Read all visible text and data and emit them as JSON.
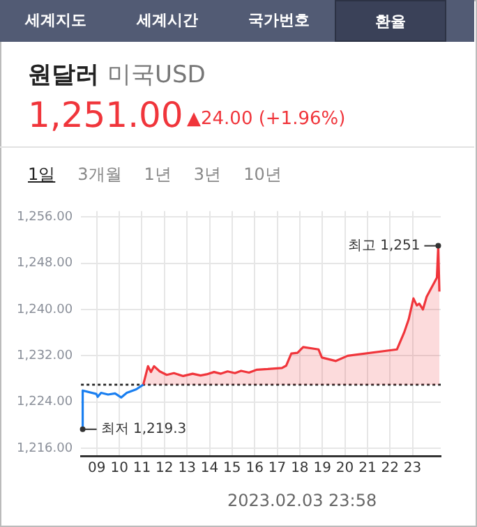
{
  "chart_data": {
    "type": "area",
    "title": "원달러",
    "subtitle": "미국USD",
    "annotations": [
      "세계지도",
      "세계시간",
      "국가번호",
      "환율",
      "1,251.00",
      "▲24.00 (+1.96%)",
      "1일",
      "3개월",
      "1년",
      "3년",
      "10년",
      "2023.02.03 23:58",
      {
        "text": "최고 1,251",
        "x": 24.14,
        "y": 1251
      },
      {
        "text": "최저 1,219.3",
        "x": 8.375,
        "y": 1219.3
      }
    ],
    "series": [
      {
        "type": "line",
        "color": "#1a7ff0",
        "x": [
          8.375,
          8.375,
          8.98,
          9.04,
          9.19,
          9.5,
          9.81,
          10.08,
          10.33,
          10.75,
          11.06
        ],
        "values": [
          1219.3,
          1226.0,
          1225.4,
          1224.9,
          1225.6,
          1225.3,
          1225.5,
          1224.8,
          1225.6,
          1226.2,
          1227.0
        ]
      },
      {
        "color": "#f0353b",
        "x": [
          11.06,
          11.27,
          11.4,
          11.54,
          11.79,
          12.1,
          12.42,
          12.83,
          13.25,
          13.6,
          13.875,
          14.2,
          14.5,
          14.8,
          15.125,
          15.4,
          15.75,
          16.1,
          16.58,
          17.21,
          17.4,
          17.625,
          17.9,
          18.15,
          18.83,
          18.98,
          19.6,
          20.125,
          22.31,
          22.625,
          22.83,
          23.04,
          23.19,
          23.3,
          23.46,
          23.625,
          24.08,
          24.14,
          24.19
        ],
        "values": [
          1227.0,
          1230.2,
          1229.2,
          1230.2,
          1229.3,
          1228.7,
          1229.0,
          1228.5,
          1228.9,
          1228.6,
          1228.8,
          1229.2,
          1228.9,
          1229.3,
          1229.0,
          1229.4,
          1229.1,
          1229.6,
          1229.7,
          1229.9,
          1230.3,
          1232.4,
          1232.5,
          1233.5,
          1233.1,
          1231.7,
          1231.1,
          1232.0,
          1233.1,
          1236.0,
          1238.3,
          1241.9,
          1240.7,
          1241.0,
          1240.0,
          1242.2,
          1245.5,
          1251.0,
          1243.1
        ]
      }
    ],
    "xlim": [
      8.3,
      24.25
    ],
    "xticks": [
      {
        "value": 9,
        "label": "09"
      },
      {
        "value": 10,
        "label": "10"
      },
      {
        "value": 11,
        "label": "11"
      },
      {
        "value": 12,
        "label": "12"
      },
      {
        "value": 13,
        "label": "13"
      },
      {
        "value": 14,
        "label": "14"
      },
      {
        "value": 15,
        "label": "15"
      },
      {
        "value": 16,
        "label": "16"
      },
      {
        "value": 17,
        "label": "17"
      },
      {
        "value": 18,
        "label": "18"
      },
      {
        "value": 19,
        "label": "19"
      },
      {
        "value": 20,
        "label": "20"
      },
      {
        "value": 21,
        "label": "21"
      },
      {
        "value": 22,
        "label": "22"
      },
      {
        "value": 23,
        "label": "23"
      }
    ],
    "ylim": [
      1214.7,
      1257
    ],
    "yticks": [
      {
        "value": 1216,
        "label": "1,216.00"
      },
      {
        "value": 1224,
        "label": "1,224.00"
      },
      {
        "value": 1232,
        "label": "1,232.00"
      },
      {
        "value": 1240,
        "label": "1,240.00"
      },
      {
        "value": 1248,
        "label": "1,248.00"
      },
      {
        "value": 1256,
        "label": "1,256.00"
      }
    ],
    "ref_lines": [
      {
        "axis": "y",
        "value": 1227,
        "color": "#222222",
        "line_style": "dotted"
      }
    ],
    "grid": true,
    "marker": "none",
    "line_style": "solid"
  }
}
